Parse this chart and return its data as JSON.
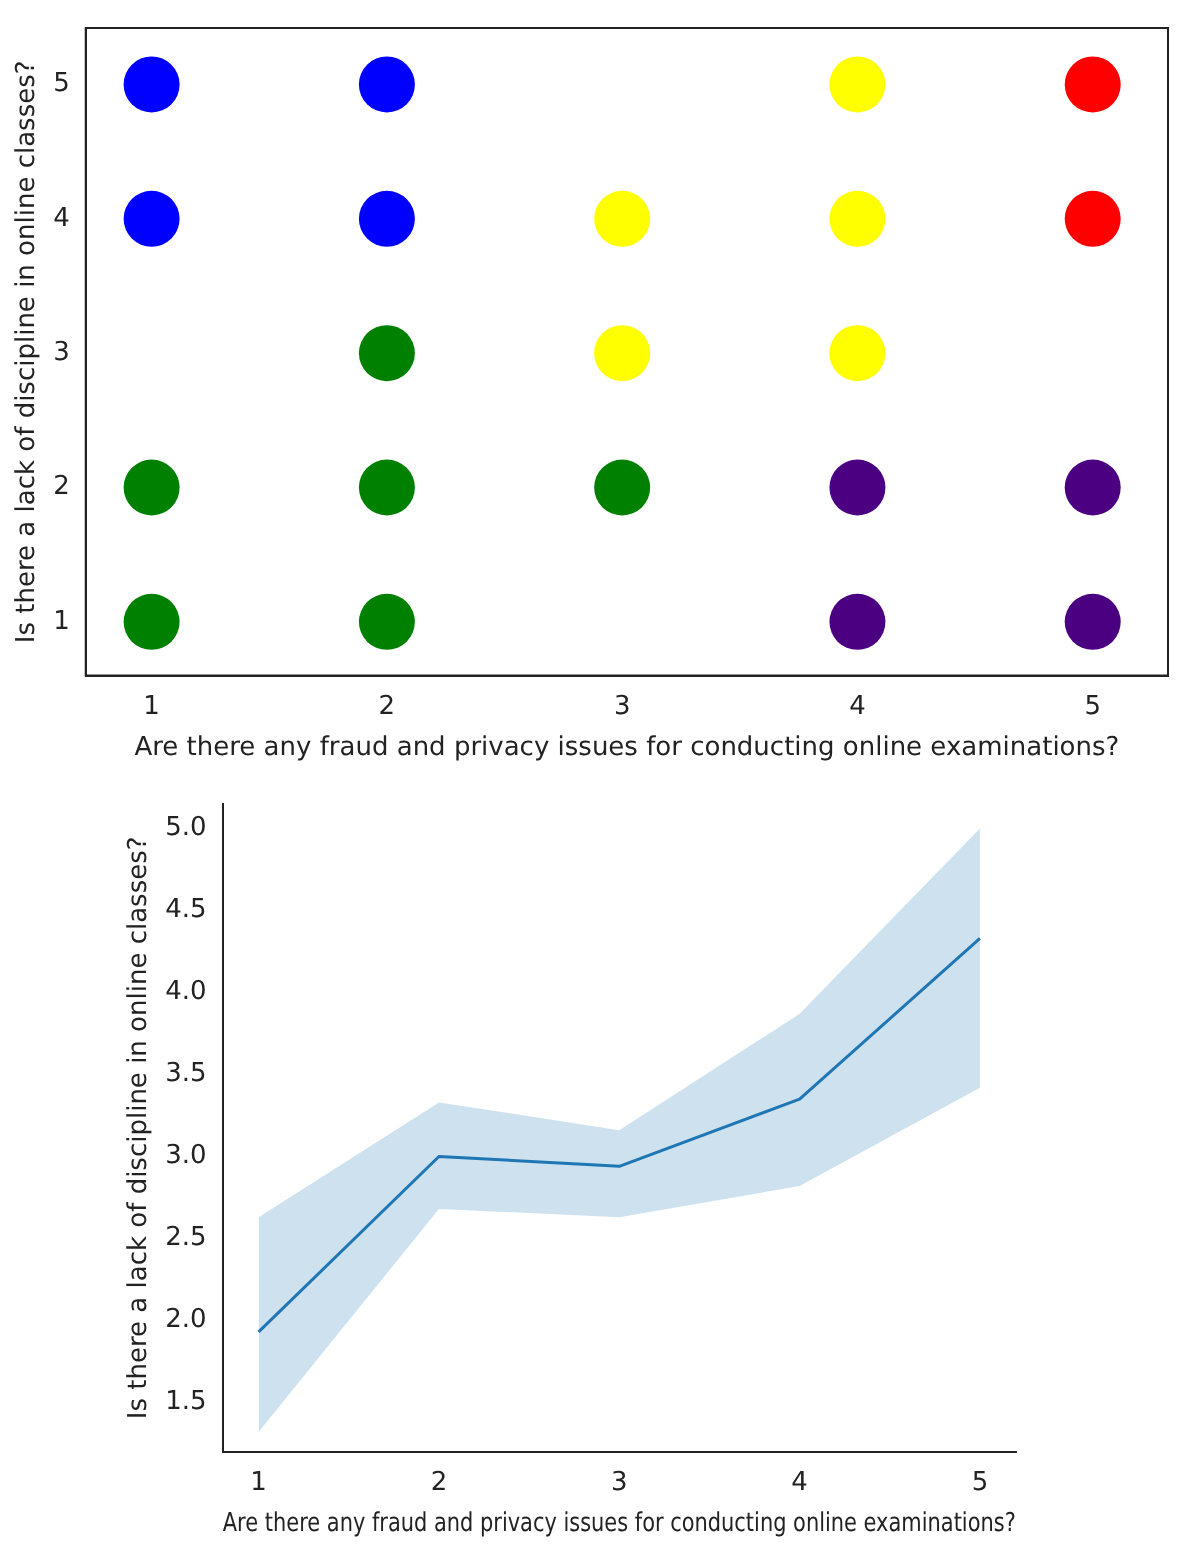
{
  "chart_data": [
    {
      "type": "scatter",
      "xlabel": "Are there any fraud and privacy issues for conducting online examinations?",
      "ylabel": "Is there a lack of discipline in online classes?",
      "xlim": [
        0.72,
        5.32
      ],
      "ylim": [
        0.6,
        5.42
      ],
      "xticks": [
        1,
        2,
        3,
        4,
        5
      ],
      "yticks": [
        1,
        2,
        3,
        4,
        5
      ],
      "grid": false,
      "legend": false,
      "marker": "circle",
      "series": [
        {
          "color": "#0000ff",
          "x": [
            1,
            1,
            2,
            2
          ],
          "values": [
            5,
            4,
            5,
            4
          ]
        },
        {
          "color": "#008000",
          "x": [
            2,
            1,
            2,
            3,
            1,
            2
          ],
          "values": [
            3,
            2,
            2,
            2,
            1,
            1
          ]
        },
        {
          "color": "#ffff00",
          "x": [
            4,
            3,
            4,
            3,
            4
          ],
          "values": [
            5,
            4,
            4,
            3,
            3
          ]
        },
        {
          "color": "#ff0000",
          "x": [
            5,
            5
          ],
          "values": [
            5,
            4
          ]
        },
        {
          "color": "#4b0082",
          "x": [
            4,
            5,
            4,
            5
          ],
          "values": [
            2,
            2,
            1,
            1
          ]
        }
      ]
    },
    {
      "type": "line",
      "xlabel": "Are there any fraud and privacy issues for conducting online examinations?",
      "ylabel": "Is there a lack of discipline in online classes?",
      "xlim": [
        0.8,
        5.2
      ],
      "ylim": [
        1.2,
        5.15
      ],
      "xticks": [
        1,
        2,
        3,
        4,
        5
      ],
      "yticks": [
        1.5,
        {
          "value": 2,
          "label": "2.0"
        },
        2.5,
        {
          "value": 3,
          "label": "3.0"
        },
        3.5,
        {
          "value": 4,
          "label": "4.0"
        },
        4.5,
        {
          "value": 5,
          "label": "5.0"
        }
      ],
      "grid": false,
      "legend": false,
      "marker": "none",
      "line_style": "solid",
      "x": [
        1,
        2,
        3,
        4,
        5
      ],
      "series": [
        {
          "color": "#1f77b4",
          "values": [
            1.93,
            3.0,
            2.94,
            3.35,
            4.33
          ],
          "lower": [
            1.32,
            2.68,
            2.63,
            2.82,
            3.42
          ],
          "upper": [
            2.63,
            3.33,
            3.16,
            3.87,
            5.0
          ]
        }
      ]
    }
  ]
}
